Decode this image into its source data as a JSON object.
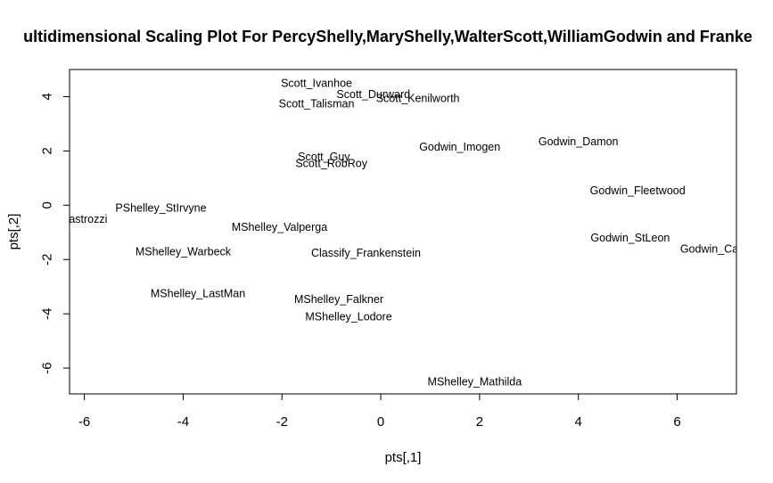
{
  "chart_data": {
    "type": "scatter",
    "title": "ultidimensional Scaling Plot For PercyShelly,MaryShelly,WalterScott,WilliamGodwin and Franke",
    "xlabel": "pts[,1]",
    "ylabel": "pts[,2]",
    "xlim": [
      -6.3,
      7.2
    ],
    "ylim": [
      -6.95,
      5.0
    ],
    "xticks": [
      -6,
      -4,
      -2,
      0,
      2,
      4,
      6
    ],
    "yticks": [
      -6,
      -4,
      -2,
      0,
      2,
      4
    ],
    "xtick_labels": [
      "-6",
      "-4",
      "-2",
      "0",
      "2",
      "4",
      "6"
    ],
    "ytick_labels": [
      "-6",
      "-4",
      "-2",
      "0",
      "2",
      "4"
    ],
    "grid": false,
    "legend": "none",
    "points": [
      {
        "label": "Scott_Ivanhoe",
        "x": -1.3,
        "y": 4.5
      },
      {
        "label": "Scott_Durward",
        "x": -0.15,
        "y": 4.1
      },
      {
        "label": "Scott_Kenilworth",
        "x": 0.75,
        "y": 3.95
      },
      {
        "label": "Scott_Talisman",
        "x": -1.3,
        "y": 3.75
      },
      {
        "label": "Godwin_Imogen",
        "x": 1.6,
        "y": 2.15
      },
      {
        "label": "Godwin_Damon",
        "x": 4.0,
        "y": 2.35
      },
      {
        "label": "Scott_Guy",
        "x": -1.15,
        "y": 1.8
      },
      {
        "label": "Scott_RobRoy",
        "x": -1.0,
        "y": 1.55
      },
      {
        "label": "Godwin_Fleetwood",
        "x": 5.2,
        "y": 0.55
      },
      {
        "label": "PShelley_StIrvyne",
        "x": -4.45,
        "y": -0.1
      },
      {
        "label": "PShelley_Zastrozzi",
        "x": -6.5,
        "y": -0.5
      },
      {
        "label": "MShelley_Valperga",
        "x": -2.05,
        "y": -0.8
      },
      {
        "label": "Godwin_StLeon",
        "x": 5.05,
        "y": -1.2
      },
      {
        "label": "Godwin_Caleb",
        "x": 6.8,
        "y": -1.6
      },
      {
        "label": "MShelley_Warbeck",
        "x": -4.0,
        "y": -1.7
      },
      {
        "label": "Classify_Frankenstein",
        "x": -0.3,
        "y": -1.75
      },
      {
        "label": "MShelley_LastMan",
        "x": -3.7,
        "y": -3.25
      },
      {
        "label": "MShelley_Falkner",
        "x": -0.85,
        "y": -3.45
      },
      {
        "label": "MShelley_Lodore",
        "x": -0.65,
        "y": -4.1
      },
      {
        "label": "MShelley_Mathilda",
        "x": 1.9,
        "y": -6.5
      }
    ]
  }
}
